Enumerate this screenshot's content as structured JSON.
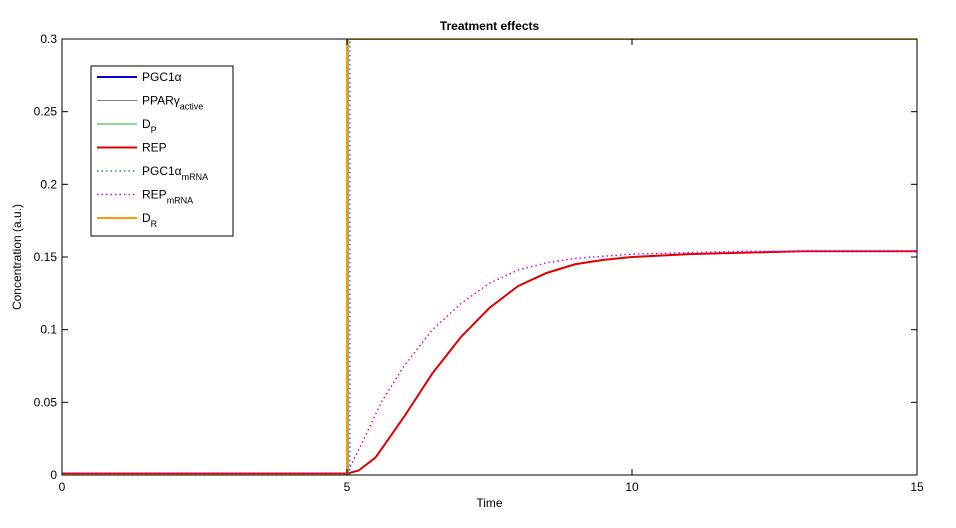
{
  "chart_data": {
    "type": "line",
    "title": "Treatment effects",
    "xlabel": "Time",
    "ylabel": "Concentration (a.u.)",
    "xlim": [
      0,
      15
    ],
    "ylim": [
      0,
      0.3
    ],
    "xticks": [
      "0",
      "5",
      "10",
      "15"
    ],
    "yticks": [
      "0",
      "0.05",
      "0.1",
      "0.15",
      "0.2",
      "0.25",
      "0.3"
    ],
    "grid": false,
    "legend_position": "top-left",
    "series": [
      {
        "name": "PGC1α",
        "name_base": "PGC1α",
        "name_sub": "",
        "color": "#0000cc",
        "style": "solid",
        "x": [
          0,
          5,
          5,
          15
        ],
        "y": [
          0,
          0,
          0.3,
          0.3
        ]
      },
      {
        "name": "PPARγactive",
        "name_base": "PPARγ",
        "name_sub": "active",
        "color": "#808080",
        "style": "solid",
        "x": [
          0,
          5.02,
          5.02,
          15
        ],
        "y": [
          0,
          0,
          0.3,
          0.3
        ]
      },
      {
        "name": "DP",
        "name_base": "D",
        "name_sub": "P",
        "color": "#33aa33",
        "style": "solid",
        "x": [
          0,
          5.02,
          5.02,
          15
        ],
        "y": [
          0,
          0,
          0.3,
          0.3
        ]
      },
      {
        "name": "REP",
        "name_base": "REP",
        "name_sub": "",
        "color": "#e00000",
        "style": "solid",
        "x": [
          0,
          5,
          5.2,
          5.5,
          6,
          6.5,
          7,
          7.5,
          8,
          8.5,
          9,
          9.5,
          10,
          11,
          12,
          13,
          14,
          15
        ],
        "y": [
          0.001,
          0.001,
          0.003,
          0.012,
          0.04,
          0.07,
          0.095,
          0.115,
          0.13,
          0.139,
          0.145,
          0.148,
          0.15,
          0.152,
          0.153,
          0.154,
          0.154,
          0.154
        ]
      },
      {
        "name": "PGC1αmRNA",
        "name_base": "PGC1α",
        "name_sub": "mRNA",
        "color": "#1a8cb8",
        "style": "dotted",
        "x": [
          0,
          5.05,
          5.05,
          15
        ],
        "y": [
          0,
          0,
          0.3,
          0.3
        ]
      },
      {
        "name": "REPmRNA",
        "name_base": "REP",
        "name_sub": "mRNA",
        "color": "#e000e0",
        "style": "dotted",
        "x": [
          0,
          5,
          5.3,
          5.6,
          6,
          6.5,
          7,
          7.5,
          8,
          8.5,
          9,
          10,
          11,
          12,
          13,
          14,
          15
        ],
        "y": [
          0.001,
          0.001,
          0.025,
          0.05,
          0.075,
          0.1,
          0.118,
          0.132,
          0.141,
          0.146,
          0.149,
          0.152,
          0.153,
          0.154,
          0.154,
          0.154,
          0.154
        ]
      },
      {
        "name": "DR",
        "name_base": "D",
        "name_sub": "R",
        "color": "#ff9900",
        "style": "solid",
        "x": [
          0,
          5,
          5,
          15
        ],
        "y": [
          0,
          0,
          0.3,
          0.3
        ]
      }
    ]
  }
}
